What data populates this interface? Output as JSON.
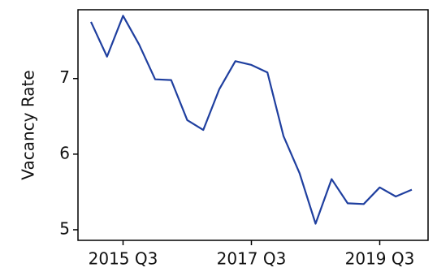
{
  "chart_data": {
    "type": "line",
    "y_label": "Vacancy Rate",
    "categories": [
      null,
      null,
      "2015 Q3",
      null,
      null,
      null,
      null,
      null,
      null,
      null,
      "2017 Q3",
      null,
      null,
      null,
      null,
      null,
      null,
      null,
      "2019 Q3",
      null,
      null
    ],
    "series": [
      {
        "color": "#1f3f9f",
        "values": [
          7.75,
          7.29,
          7.83,
          7.45,
          6.99,
          6.98,
          6.45,
          6.32,
          6.86,
          7.23,
          7.18,
          7.08,
          6.24,
          5.75,
          5.08,
          5.67,
          5.35,
          5.34,
          5.56,
          5.44,
          5.53
        ]
      }
    ],
    "ylim": [
      4.86,
      7.91
    ],
    "yticks": [
      5,
      6,
      7
    ]
  }
}
